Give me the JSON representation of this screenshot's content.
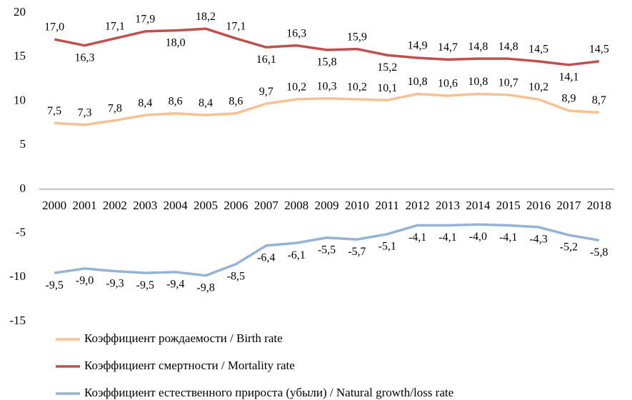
{
  "chart_data": {
    "type": "line",
    "categories": [
      "2000",
      "2001",
      "2002",
      "2003",
      "2004",
      "2005",
      "2006",
      "2007",
      "2008",
      "2009",
      "2010",
      "2011",
      "2012",
      "2013",
      "2014",
      "2015",
      "2016",
      "2017",
      "2018"
    ],
    "series": [
      {
        "name": "Коэффициент рождаемости / Birth rate",
        "color": "#fac090",
        "values": [
          7.5,
          7.3,
          7.8,
          8.4,
          8.6,
          8.4,
          8.6,
          9.7,
          10.2,
          10.3,
          10.2,
          10.1,
          10.8,
          10.6,
          10.8,
          10.7,
          10.2,
          8.9,
          8.7
        ],
        "value_labels": [
          "7,5",
          "7,3",
          "7,8",
          "8,4",
          "8,6",
          "8,4",
          "8,6",
          "9,7",
          "10,2",
          "10,3",
          "10,2",
          "10,1",
          "10,8",
          "10,6",
          "10,8",
          "10,7",
          "10,2",
          "8,9",
          "8,7"
        ]
      },
      {
        "name": "Коэффициент смертности / Mortality rate",
        "color": "#c0504d",
        "values": [
          17.0,
          16.3,
          17.1,
          17.9,
          18.0,
          18.2,
          17.1,
          16.1,
          16.3,
          15.8,
          15.9,
          15.2,
          14.9,
          14.7,
          14.8,
          14.8,
          14.5,
          14.1,
          14.5
        ],
        "value_labels": [
          "17,0",
          "16,3",
          "17,1",
          "17,9",
          "18,0",
          "18,2",
          "17,1",
          "16,1",
          "16,3",
          "15,8",
          "15,9",
          "15,2",
          "14,9",
          "14,7",
          "14,8",
          "14,8",
          "14,5",
          "14,1",
          "14,5"
        ]
      },
      {
        "name": "Коэффициент естественного прироста (убыли) / Natural growth/loss rate",
        "color": "#95b3d7",
        "values": [
          -9.5,
          -9.0,
          -9.3,
          -9.5,
          -9.4,
          -9.8,
          -8.5,
          -6.4,
          -6.1,
          -5.5,
          -5.7,
          -5.1,
          -4.1,
          -4.1,
          -4.0,
          -4.1,
          -4.3,
          -5.2,
          -5.8
        ],
        "value_labels": [
          "-9,5",
          "-9,0",
          "-9,3",
          "-9,5",
          "-9,4",
          "-9,8",
          "-8,5",
          "-6,4",
          "-6,1",
          "-5,5",
          "-5,7",
          "-5,1",
          "-4,1",
          "-4,1",
          "-4,0",
          "-4,1",
          "-4,3",
          "-5,2",
          "-5,8"
        ]
      }
    ],
    "ylim": [
      -15,
      20
    ],
    "yticks": [
      -15,
      -10,
      -5,
      0,
      5,
      10,
      15,
      20
    ],
    "legend": "bottom"
  }
}
